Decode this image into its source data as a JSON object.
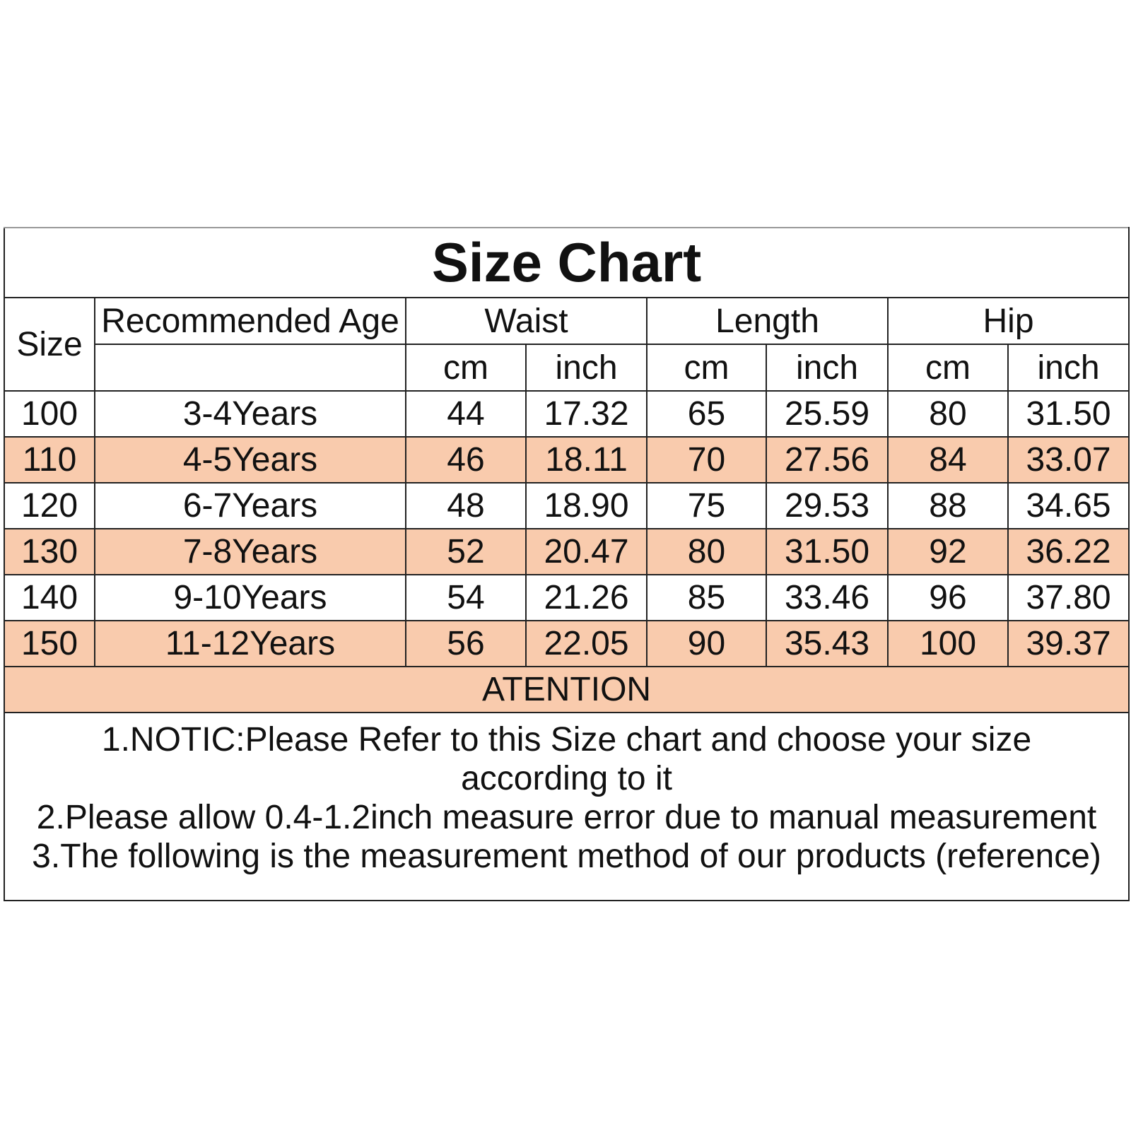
{
  "title": "Size Chart",
  "headers": [
    "Size",
    "Recommended Age",
    "Waist",
    "Length",
    "Hip"
  ],
  "subheaders": [
    "cm",
    "inch",
    "cm",
    "inch",
    "cm",
    "inch"
  ],
  "rows": [
    [
      "100",
      "3-4Years",
      "44",
      "17.32",
      "65",
      "25.59",
      "80",
      "31.50"
    ],
    [
      "110",
      "4-5Years",
      "46",
      "18.11",
      "70",
      "27.56",
      "84",
      "33.07"
    ],
    [
      "120",
      "6-7Years",
      "48",
      "18.90",
      "75",
      "29.53",
      "88",
      "34.65"
    ],
    [
      "130",
      "7-8Years",
      "52",
      "20.47",
      "80",
      "31.50",
      "92",
      "36.22"
    ],
    [
      "140",
      "9-10Years",
      "54",
      "21.26",
      "85",
      "33.46",
      "96",
      "37.80"
    ],
    [
      "150",
      "11-12Years",
      "56",
      "22.05",
      "90",
      "35.43",
      "100",
      "39.37"
    ]
  ],
  "attention": "ATENTION",
  "notes": [
    "1.NOTIC:Please Refer to this Size chart and choose your size according to it",
    "2.Please allow 0.4-1.2inch measure error due to manual measurement",
    "3.The following is the measurement method of our products (reference)"
  ]
}
